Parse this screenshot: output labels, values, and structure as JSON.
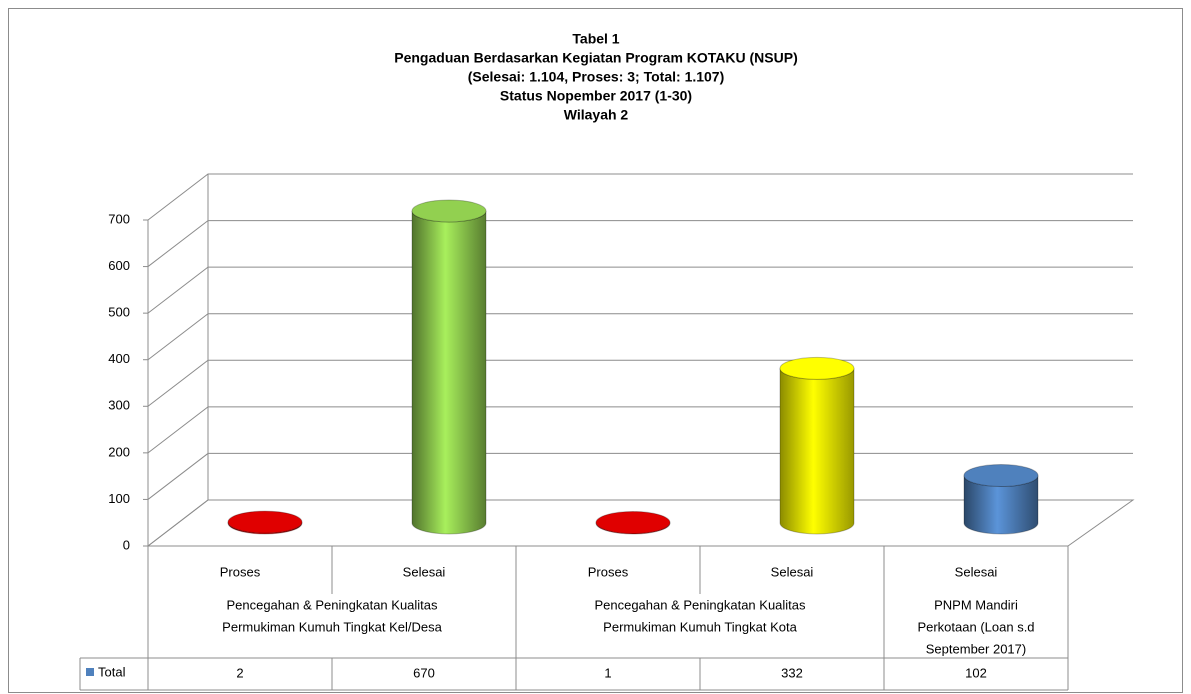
{
  "chart_data": {
    "type": "bar3d",
    "title": [
      "Tabel 1",
      "Pengaduan Berdasarkan Kegiatan Program KOTAKU (NSUP)",
      "(Selesai: 1.104, Proses: 3; Total: 1.107)",
      "Status Nopember 2017  (1-30)",
      "Wilayah 2"
    ],
    "categories": [
      "Proses",
      "Selesai",
      "Proses",
      "Selesai",
      "Selesai"
    ],
    "groups": [
      {
        "label": [
          "Pencegahan & Peningkatan Kualitas",
          "Permukiman Kumuh Tingkat Kel/Desa"
        ],
        "span": 2
      },
      {
        "label": [
          "Pencegahan & Peningkatan Kualitas",
          "Permukiman Kumuh Tingkat Kota"
        ],
        "span": 2
      },
      {
        "label": [
          "PNPM Mandiri",
          "Perkotaan (Loan s.d",
          "September 2017)"
        ],
        "span": 1
      }
    ],
    "series": [
      {
        "name": "Total",
        "color": "#4f81bd",
        "bar_colors": [
          "#e00000",
          "#92d050",
          "#e00000",
          "#ffff00",
          "#4f81bd"
        ],
        "values": [
          2,
          670,
          1,
          332,
          102
        ]
      }
    ],
    "ylim": [
      0,
      700
    ],
    "yticks": [
      0,
      100,
      200,
      300,
      400,
      500,
      600,
      700
    ],
    "grid": true,
    "data_table": true
  }
}
